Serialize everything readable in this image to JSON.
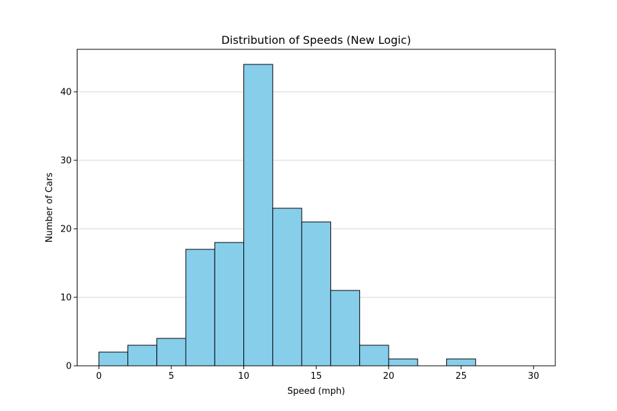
{
  "chart_data": {
    "type": "bar",
    "title": "Distribution of Speeds (New Logic)",
    "xlabel": "Speed (mph)",
    "ylabel": "Number of Cars",
    "bin_edges": [
      0,
      2,
      4,
      6,
      8,
      10,
      12,
      14,
      16,
      18,
      20,
      22,
      24,
      26,
      28,
      30
    ],
    "values": [
      2,
      3,
      4,
      17,
      18,
      44,
      23,
      21,
      11,
      3,
      1,
      0,
      1,
      0,
      0
    ],
    "xlim": [
      -1.5,
      31.5
    ],
    "ylim": [
      0,
      46.2
    ],
    "xticks": [
      0,
      5,
      10,
      15,
      20,
      25,
      30
    ],
    "yticks": [
      0,
      10,
      20,
      30,
      40
    ],
    "grid": "y",
    "colors": {
      "bar_fill": "#87ceeb",
      "bar_edge": "#000000",
      "grid": "#c8c8c8"
    }
  }
}
